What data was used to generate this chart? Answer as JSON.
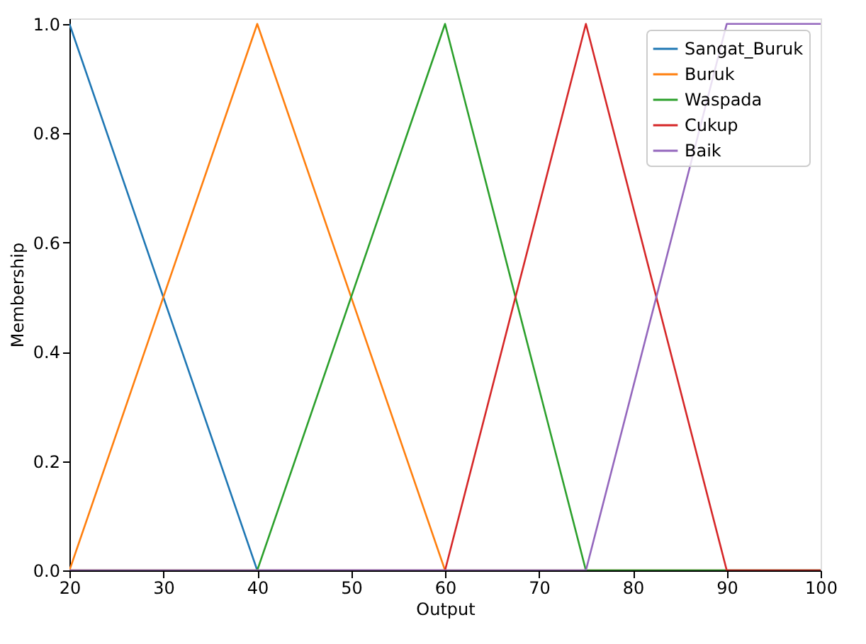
{
  "chart_data": {
    "type": "line",
    "xlabel": "Output",
    "ylabel": "Membership",
    "xlim": [
      20,
      100
    ],
    "xticks": [
      20,
      30,
      40,
      50,
      60,
      70,
      80,
      90,
      100
    ],
    "ylim": [
      0,
      1.01
    ],
    "yticks": [
      {
        "value": 0,
        "label": "0.0"
      },
      {
        "value": 0.2,
        "label": "0.2"
      },
      {
        "value": 0.4,
        "label": "0.4"
      },
      {
        "value": 0.6,
        "label": "0.6"
      },
      {
        "value": 0.8,
        "label": "0.8"
      },
      {
        "value": 1,
        "label": "1.0"
      }
    ],
    "grid": false,
    "legend": "top right",
    "marker": "none",
    "line_style": "solid",
    "series": [
      {
        "name": "Sangat_Buruk",
        "color": "#1f77b4",
        "x": [
          20,
          40,
          100
        ],
        "values": [
          1,
          0,
          0
        ]
      },
      {
        "name": "Buruk",
        "color": "#ff7f0e",
        "x": [
          20,
          40,
          60,
          100
        ],
        "values": [
          0,
          1,
          0,
          0
        ]
      },
      {
        "name": "Waspada",
        "color": "#2ca02c",
        "x": [
          20,
          40,
          60,
          75,
          100
        ],
        "values": [
          0,
          0,
          1,
          0,
          0
        ]
      },
      {
        "name": "Cukup",
        "color": "#d62728",
        "x": [
          20,
          60,
          75,
          90,
          100
        ],
        "values": [
          0,
          0,
          1,
          0,
          0
        ]
      },
      {
        "name": "Baik",
        "color": "#9467bd",
        "x": [
          20,
          75,
          90,
          100
        ],
        "values": [
          0,
          0,
          1,
          1
        ]
      }
    ]
  }
}
